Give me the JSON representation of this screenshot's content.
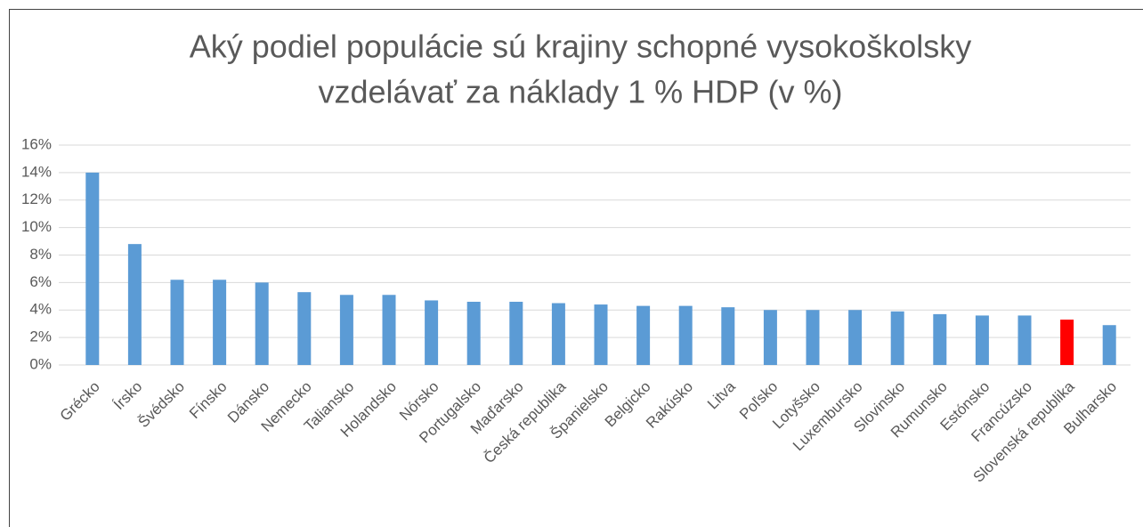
{
  "chart_data": {
    "type": "bar",
    "title": [
      "Aký podiel populácie sú krajiny schopné vysokoškolsky",
      "vzdelávať za náklady 1 % HDP (v %)"
    ],
    "categories": [
      "Grécko",
      "Írsko",
      "Švédsko",
      "Fínsko",
      "Dánsko",
      "Nemecko",
      "Taliansko",
      "Holandsko",
      "Nórsko",
      "Portugalsko",
      "Maďarsko",
      "Česká republika",
      "Španielsko",
      "Belgicko",
      "Rakúsko",
      "Litva",
      "Poľsko",
      "Lotyšsko",
      "Luxembursko",
      "Slovinsko",
      "Rumunsko",
      "Estónsko",
      "Francúzsko",
      "Slovenská republika",
      "Bulharsko"
    ],
    "values": [
      14.0,
      8.8,
      6.2,
      6.2,
      6.0,
      5.3,
      5.1,
      5.1,
      4.7,
      4.6,
      4.6,
      4.5,
      4.4,
      4.3,
      4.3,
      4.2,
      4.0,
      4.0,
      4.0,
      3.9,
      3.7,
      3.6,
      3.6,
      3.3,
      2.9
    ],
    "colors": [
      "#5b9bd5",
      "#5b9bd5",
      "#5b9bd5",
      "#5b9bd5",
      "#5b9bd5",
      "#5b9bd5",
      "#5b9bd5",
      "#5b9bd5",
      "#5b9bd5",
      "#5b9bd5",
      "#5b9bd5",
      "#5b9bd5",
      "#5b9bd5",
      "#5b9bd5",
      "#5b9bd5",
      "#5b9bd5",
      "#5b9bd5",
      "#5b9bd5",
      "#5b9bd5",
      "#5b9bd5",
      "#5b9bd5",
      "#5b9bd5",
      "#5b9bd5",
      "#ff0000",
      "#5b9bd5"
    ],
    "ylim": [
      0,
      16
    ],
    "yticks": [
      {
        "value": 0,
        "label": "0%"
      },
      {
        "value": 2,
        "label": "2%"
      },
      {
        "value": 4,
        "label": "4%"
      },
      {
        "value": 6,
        "label": "6%"
      },
      {
        "value": 8,
        "label": "8%"
      },
      {
        "value": 10,
        "label": "10%"
      },
      {
        "value": 12,
        "label": "12%"
      },
      {
        "value": 14,
        "label": "14%"
      },
      {
        "value": 16,
        "label": "16%"
      }
    ],
    "grid": true
  }
}
